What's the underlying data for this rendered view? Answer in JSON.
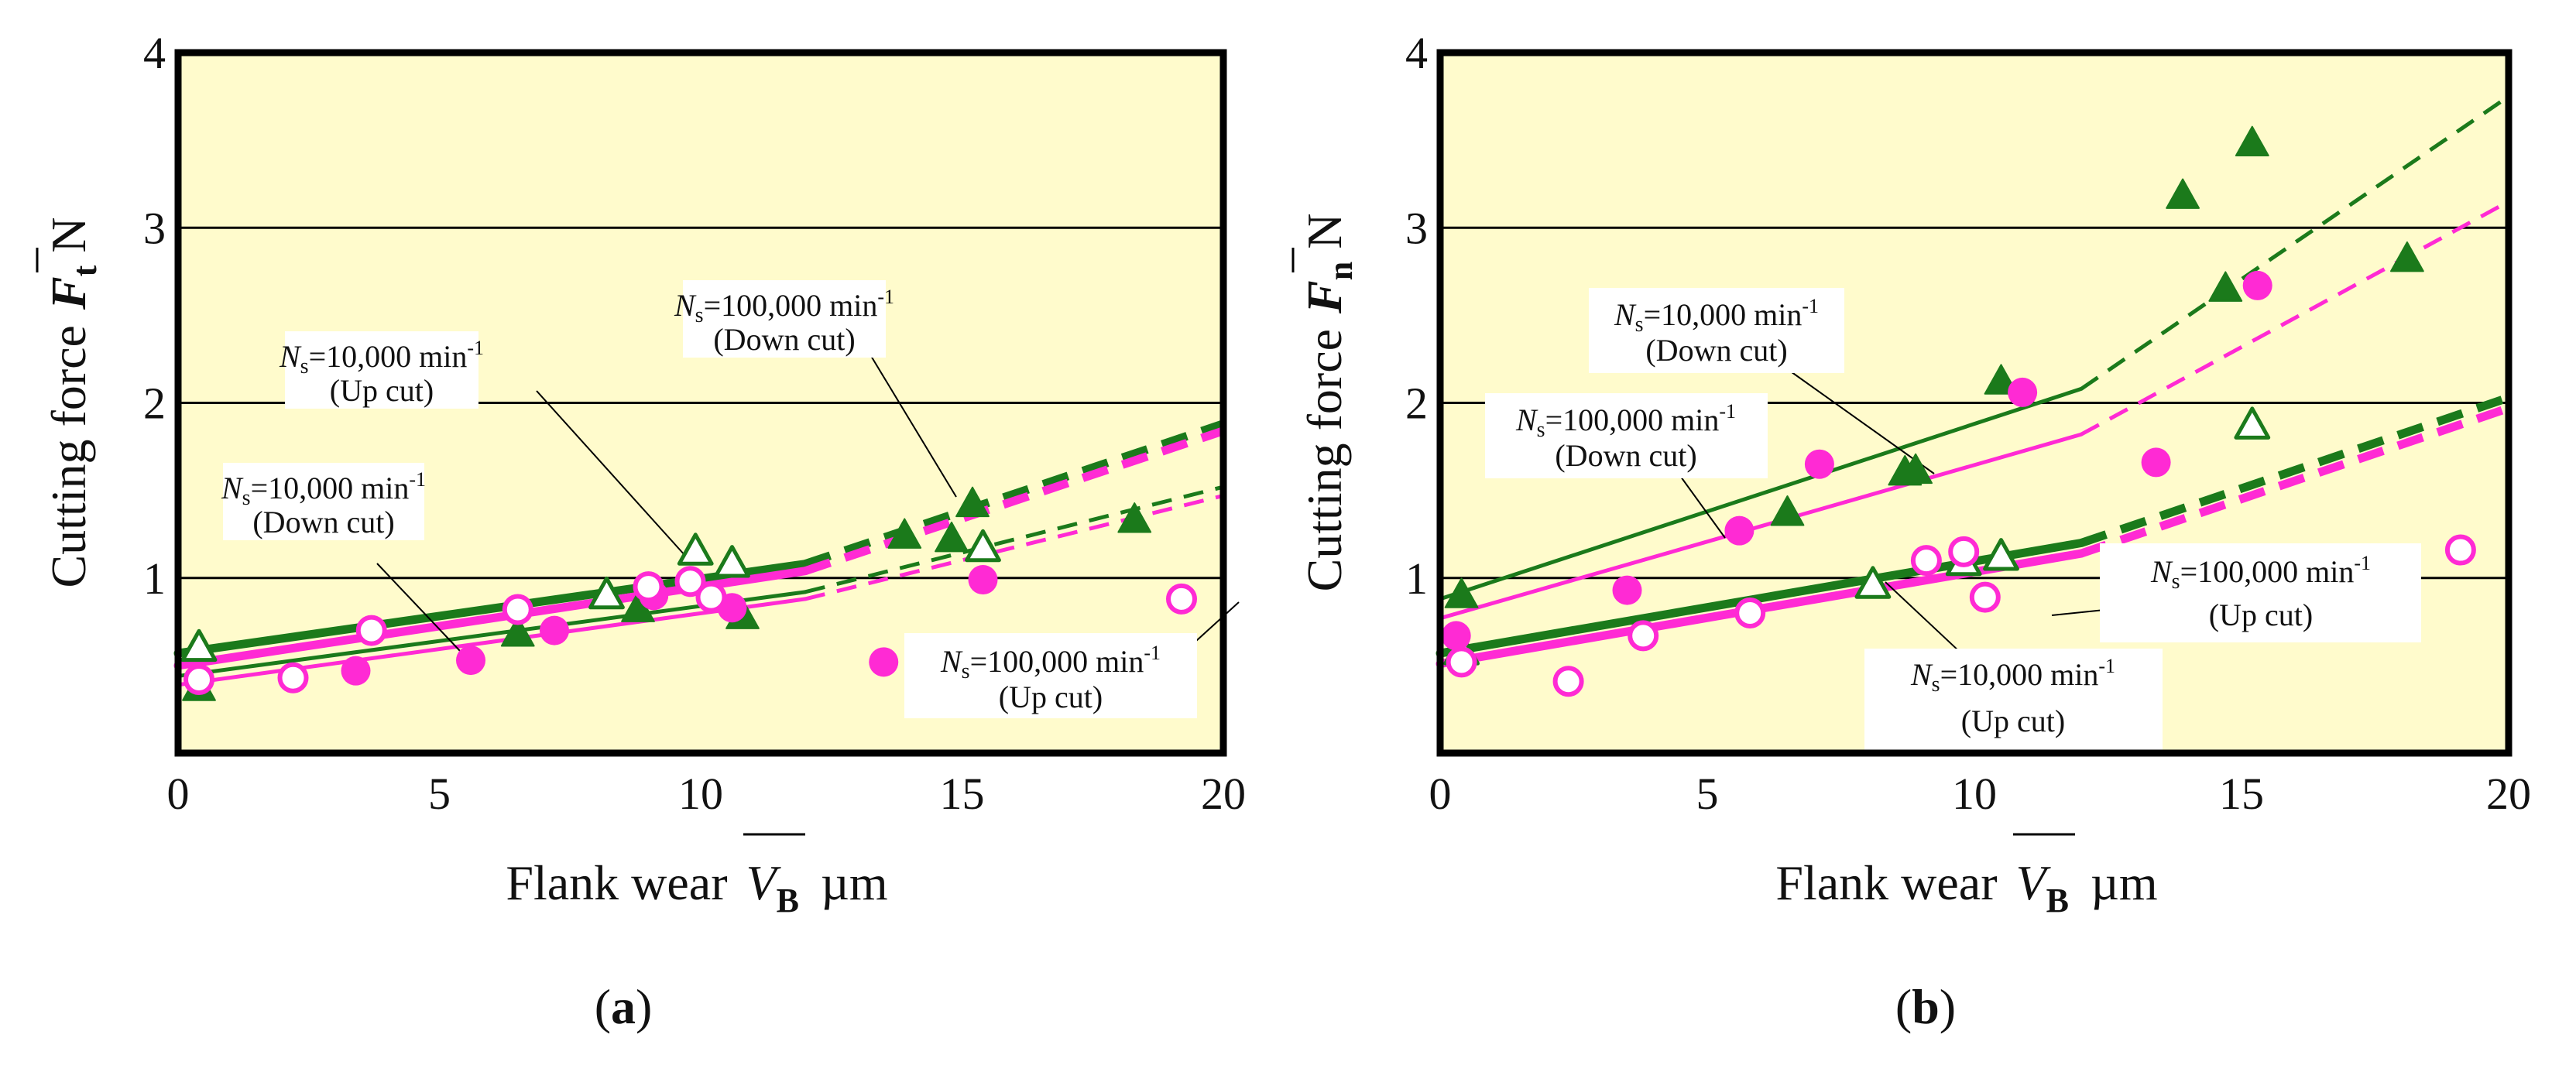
{
  "figure": {
    "panel_a_label": "a",
    "panel_b_label": "b"
  },
  "colors": {
    "green": "#1b7a1b",
    "magenta": "#ff2ad4",
    "plot_bg": "#fffbcc",
    "grid": "#000000"
  },
  "chart_data": [
    {
      "type": "scatter",
      "panel": "(a)",
      "xlabel": "Flank wear",
      "xlabel_symbol": "V",
      "xlabel_sub": "B",
      "xlabel_unit": "µm",
      "ylabel": "Cutting force",
      "ylabel_symbol": "F",
      "ylabel_sub": "t",
      "ylabel_unit": "N",
      "xlim": [
        0,
        20
      ],
      "ylim": [
        0,
        4
      ],
      "xticks": [
        0,
        5,
        10,
        15,
        20
      ],
      "yticks": [
        1,
        2,
        3,
        4
      ],
      "ytick_labels": [
        "1",
        "2",
        "3",
        "4"
      ],
      "grid": "horizontal",
      "series": [
        {
          "name": "Ns=10,000 min-1 Up cut",
          "color": "green",
          "marker": "triangle-open",
          "points": [
            [
              0.4,
              0.6
            ],
            [
              8.2,
              0.9
            ],
            [
              9.9,
              1.15
            ],
            [
              10.6,
              1.08
            ],
            [
              15.4,
              1.17
            ]
          ]
        },
        {
          "name": "Ns=10,000 min-1 Down cut",
          "color": "green",
          "marker": "triangle-filled",
          "points": [
            [
              0.4,
              0.37
            ],
            [
              6.5,
              0.68
            ],
            [
              8.8,
              0.82
            ],
            [
              10.8,
              0.78
            ],
            [
              13.9,
              1.24
            ],
            [
              14.8,
              1.22
            ],
            [
              15.2,
              1.42
            ],
            [
              18.3,
              1.33
            ]
          ]
        },
        {
          "name": "Ns=100,000 min-1 Down cut",
          "color": "magenta",
          "marker": "circle-filled",
          "points": [
            [
              0.4,
              0.42
            ],
            [
              3.4,
              0.47
            ],
            [
              5.6,
              0.53
            ],
            [
              7.2,
              0.7
            ],
            [
              9.1,
              0.9
            ],
            [
              10.6,
              0.83
            ],
            [
              13.5,
              0.52
            ],
            [
              15.4,
              0.99
            ]
          ]
        },
        {
          "name": "Ns=100,000 min-1 Up cut",
          "color": "magenta",
          "marker": "circle-open",
          "points": [
            [
              0.4,
              0.42
            ],
            [
              2.2,
              0.43
            ],
            [
              3.7,
              0.7
            ],
            [
              6.5,
              0.82
            ],
            [
              9.0,
              0.95
            ],
            [
              9.8,
              0.98
            ],
            [
              10.2,
              0.89
            ],
            [
              19.2,
              0.88
            ]
          ]
        }
      ],
      "lines": [
        {
          "color": "green",
          "width": "thick",
          "solid": [
            [
              0,
              0.57
            ],
            [
              12,
              1.08
            ]
          ],
          "dashed": [
            [
              12,
              1.08
            ],
            [
              20,
              1.88
            ]
          ]
        },
        {
          "color": "magenta",
          "width": "thick",
          "solid": [
            [
              0,
              0.5
            ],
            [
              12,
              1.04
            ]
          ],
          "dashed": [
            [
              12,
              1.04
            ],
            [
              20,
              1.84
            ]
          ]
        },
        {
          "color": "green",
          "width": "thin",
          "solid": [
            [
              0,
              0.44
            ],
            [
              12,
              0.92
            ]
          ],
          "dashed": [
            [
              12,
              0.92
            ],
            [
              20,
              1.52
            ]
          ]
        },
        {
          "color": "magenta",
          "width": "thin",
          "solid": [
            [
              0,
              0.39
            ],
            [
              12,
              0.88
            ]
          ],
          "dashed": [
            [
              12,
              0.88
            ],
            [
              20,
              1.47
            ]
          ]
        }
      ],
      "annotations": [
        {
          "line1_pre": "N",
          "line1_sub": "s",
          "line1_mid": "=100,000 min",
          "line1_sup": "-1",
          "line2": "(Down cut)"
        },
        {
          "line1_pre": "N",
          "line1_sub": "s",
          "line1_mid": "=10,000 min",
          "line1_sup": "-1",
          "line2": "(Up cut)"
        },
        {
          "line1_pre": "N",
          "line1_sub": "s",
          "line1_mid": "=10,000 min",
          "line1_sup": "-1",
          "line2": "(Down cut)"
        },
        {
          "line1_pre": "N",
          "line1_sub": "s",
          "line1_mid": "=100,000 min",
          "line1_sup": "-1",
          "line2": "(Up cut)"
        }
      ]
    },
    {
      "type": "scatter",
      "panel": "(b)",
      "xlabel": "Flank wear",
      "xlabel_symbol": "V",
      "xlabel_sub": "B",
      "xlabel_unit": "µm",
      "ylabel": "Cutting force",
      "ylabel_symbol": "F",
      "ylabel_sub": "n",
      "ylabel_unit": "N",
      "xlim": [
        0,
        20
      ],
      "ylim": [
        0,
        4
      ],
      "xticks": [
        0,
        5,
        10,
        15,
        20
      ],
      "yticks": [
        1,
        2,
        3,
        4
      ],
      "ytick_labels": [
        "1",
        "2",
        "3",
        "4"
      ],
      "grid": "horizontal",
      "series": [
        {
          "name": "Ns=10,000 min-1 Up cut",
          "color": "green",
          "marker": "triangle-open",
          "points": [
            [
              0.4,
              0.58
            ],
            [
              8.1,
              0.96
            ],
            [
              9.8,
              1.09
            ],
            [
              10.5,
              1.12
            ],
            [
              15.2,
              1.87
            ]
          ]
        },
        {
          "name": "Ns=10,000 min-1 Down cut",
          "color": "green",
          "marker": "triangle-filled",
          "points": [
            [
              0.4,
              0.9
            ],
            [
              6.5,
              1.37
            ],
            [
              8.7,
              1.6
            ],
            [
              8.9,
              1.61
            ],
            [
              10.5,
              2.12
            ],
            [
              13.9,
              3.18
            ],
            [
              14.7,
              2.65
            ],
            [
              15.2,
              3.48
            ],
            [
              18.1,
              2.82
            ]
          ]
        },
        {
          "name": "Ns=100,000 min-1 Down cut",
          "color": "magenta",
          "marker": "circle-filled",
          "points": [
            [
              0.3,
              0.67
            ],
            [
              3.5,
              0.93
            ],
            [
              5.6,
              1.27
            ],
            [
              7.1,
              1.65
            ],
            [
              10.9,
              2.06
            ],
            [
              13.4,
              1.66
            ],
            [
              15.3,
              2.67
            ]
          ]
        },
        {
          "name": "Ns=100,000 min-1 Up cut",
          "color": "magenta",
          "marker": "circle-open",
          "points": [
            [
              0.4,
              0.52
            ],
            [
              2.4,
              0.41
            ],
            [
              3.8,
              0.67
            ],
            [
              5.8,
              0.8
            ],
            [
              9.1,
              1.1
            ],
            [
              9.8,
              1.15
            ],
            [
              10.2,
              0.89
            ],
            [
              19.1,
              1.16
            ]
          ]
        }
      ],
      "lines": [
        {
          "color": "green",
          "width": "thin",
          "solid": [
            [
              0,
              0.88
            ],
            [
              12,
              2.08
            ]
          ],
          "dashed": [
            [
              12,
              2.08
            ],
            [
              20,
              3.75
            ]
          ]
        },
        {
          "color": "magenta",
          "width": "thin",
          "solid": [
            [
              0,
              0.77
            ],
            [
              12,
              1.82
            ]
          ],
          "dashed": [
            [
              12,
              1.82
            ],
            [
              20,
              3.15
            ]
          ]
        },
        {
          "color": "green",
          "width": "thick",
          "solid": [
            [
              0,
              0.57
            ],
            [
              12,
              1.2
            ]
          ],
          "dashed": [
            [
              12,
              1.2
            ],
            [
              20,
              2.03
            ]
          ]
        },
        {
          "color": "magenta",
          "width": "thick",
          "solid": [
            [
              0,
              0.51
            ],
            [
              12,
              1.14
            ]
          ],
          "dashed": [
            [
              12,
              1.14
            ],
            [
              20,
              1.97
            ]
          ]
        }
      ],
      "annotations": [
        {
          "line1_pre": "N",
          "line1_sub": "s",
          "line1_mid": "=10,000 min",
          "line1_sup": "-1",
          "line2": "(Down cut)"
        },
        {
          "line1_pre": "N",
          "line1_sub": "s",
          "line1_mid": "=100,000 min",
          "line1_sup": "-1",
          "line2": "(Down cut)"
        },
        {
          "line1_pre": "N",
          "line1_sub": "s",
          "line1_mid": "=100,000 min",
          "line1_sup": "-1",
          "line2": "(Up cut)"
        },
        {
          "line1_pre": "N",
          "line1_sub": "s",
          "line1_mid": "=10,000 min",
          "line1_sup": "-1",
          "line2": "(Up cut)"
        }
      ]
    }
  ]
}
